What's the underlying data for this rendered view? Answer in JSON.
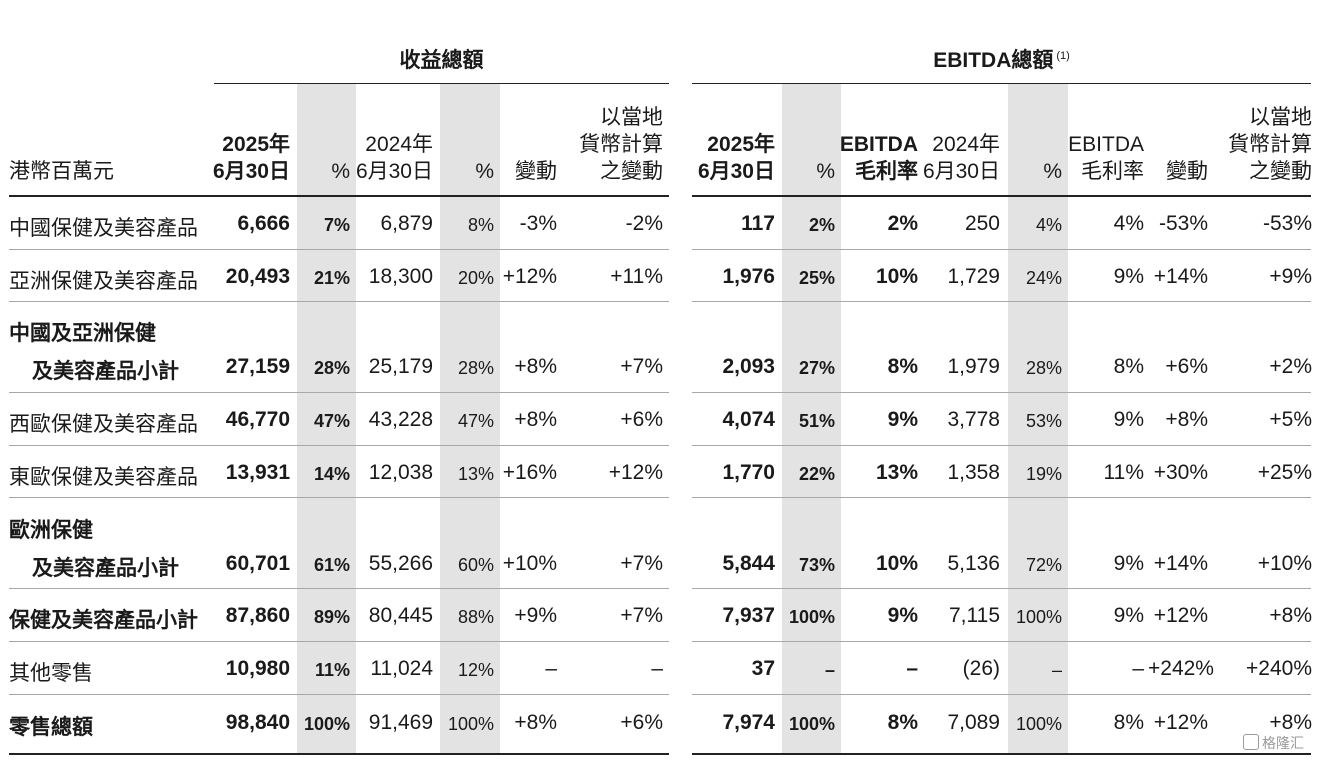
{
  "headers": {
    "unit_label": "港幣百萬元",
    "revenue_group": "收益總額",
    "ebitda_group": "EBITDA總額",
    "ebitda_note": "(1)",
    "cols": [
      "2025年\n6月30日",
      "%",
      "2024年\n6月30日",
      "%",
      "變動",
      "以當地\n貨幣計算\n之變動",
      "2025年\n6月30日",
      "%",
      "EBITDA\n毛利率",
      "2024年\n6月30日",
      "%",
      "EBITDA\n毛利率",
      "變動",
      "以當地\n貨幣計算\n之變動"
    ]
  },
  "rows": [
    {
      "label": [
        "中國保健及美容產品"
      ],
      "values": [
        "6,666",
        "7%",
        "6,879",
        "8%",
        "-3%",
        "-2%",
        "117",
        "2%",
        "2%",
        "250",
        "4%",
        "4%",
        "-53%",
        "-53%"
      ]
    },
    {
      "label": [
        "亞洲保健及美容產品"
      ],
      "values": [
        "20,493",
        "21%",
        "18,300",
        "20%",
        "+12%",
        "+11%",
        "1,976",
        "25%",
        "10%",
        "1,729",
        "24%",
        "9%",
        "+14%",
        "+9%"
      ]
    },
    {
      "label": [
        "中國及亞洲保健",
        "及美容產品小計"
      ],
      "values": [
        "27,159",
        "28%",
        "25,179",
        "28%",
        "+8%",
        "+7%",
        "2,093",
        "27%",
        "8%",
        "1,979",
        "28%",
        "8%",
        "+6%",
        "+2%"
      ]
    },
    {
      "label": [
        "西歐保健及美容產品"
      ],
      "values": [
        "46,770",
        "47%",
        "43,228",
        "47%",
        "+8%",
        "+6%",
        "4,074",
        "51%",
        "9%",
        "3,778",
        "53%",
        "9%",
        "+8%",
        "+5%"
      ]
    },
    {
      "label": [
        "東歐保健及美容產品"
      ],
      "values": [
        "13,931",
        "14%",
        "12,038",
        "13%",
        "+16%",
        "+12%",
        "1,770",
        "22%",
        "13%",
        "1,358",
        "19%",
        "11%",
        "+30%",
        "+25%"
      ]
    },
    {
      "label": [
        "歐洲保健",
        "及美容產品小計"
      ],
      "values": [
        "60,701",
        "61%",
        "55,266",
        "60%",
        "+10%",
        "+7%",
        "5,844",
        "73%",
        "10%",
        "5,136",
        "72%",
        "9%",
        "+14%",
        "+10%"
      ]
    },
    {
      "label": [
        "保健及美容產品小計"
      ],
      "values": [
        "87,860",
        "89%",
        "80,445",
        "88%",
        "+9%",
        "+7%",
        "7,937",
        "100%",
        "9%",
        "7,115",
        "100%",
        "9%",
        "+12%",
        "+8%"
      ]
    },
    {
      "label": [
        "其他零售"
      ],
      "values": [
        "10,980",
        "11%",
        "11,024",
        "12%",
        "–",
        "–",
        "37",
        "–",
        "–",
        "(26)",
        "–",
        "–",
        "+242%",
        "+240%"
      ]
    },
    {
      "label": [
        "零售總額"
      ],
      "values": [
        "98,840",
        "100%",
        "91,469",
        "100%",
        "+8%",
        "+6%",
        "7,974",
        "100%",
        "8%",
        "7,089",
        "100%",
        "8%",
        "+12%",
        "+8%"
      ]
    }
  ],
  "watermark": "格隆汇"
}
